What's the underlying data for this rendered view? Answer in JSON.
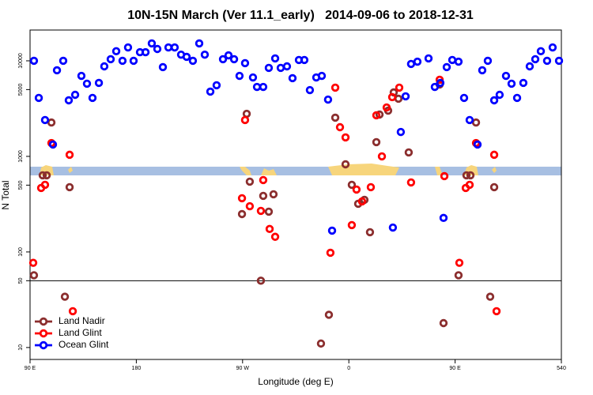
{
  "chart_data": {
    "type": "scatter",
    "title": "10N-15N March (Ver 11.1_early)   2014-09-06 to 2018-12-31",
    "x_label": "Longitude (deg E)",
    "y_label": "N Total",
    "xlim": [
      90,
      540
    ],
    "xticks": [
      {
        "value": 90,
        "label": "90 E"
      },
      180,
      {
        "value": 270,
        "label": "90 W"
      },
      {
        "value": 360,
        "label": "0"
      },
      {
        "value": 450,
        "label": "90 E"
      },
      540
    ],
    "ylim": [
      7.5,
      21000
    ],
    "ylog": true,
    "yticks": [
      10,
      50,
      100,
      500,
      1000,
      5000,
      10000
    ],
    "hline": 50,
    "legend": "bottomleft",
    "series": [
      {
        "name": "Land Nadir",
        "color": "#8b2e2e",
        "x": [
          93.3,
          100.7,
          104.1,
          108.1,
          119.5,
          123.5,
          269.5,
          273.5,
          276.1,
          285.5,
          287.5,
          292.2,
          296.2,
          336.4,
          343.1,
          348.5,
          357.2,
          362.5,
          367.9,
          373.2,
          377.9,
          383.3,
          386.0,
          393.3,
          398.0,
          402.0,
          410.7,
          436.9,
          440.2,
          452.9,
          459.6,
          463.0,
          467.7,
          479.7,
          483.1
        ],
        "values": [
          57,
          634,
          634,
          2260,
          34,
          476,
          249,
          2790,
          544,
          50,
          386,
          264,
          401,
          11,
          22,
          2540,
          826,
          504,
          319,
          351,
          161,
          1410,
          2740,
          3010,
          4670,
          4010,
          1100,
          5650,
          18,
          57,
          634,
          634,
          2260,
          34,
          476
        ]
      },
      {
        "name": "Land Glint",
        "color": "#ff0000",
        "x": [
          92.7,
          99.4,
          102.7,
          108.1,
          123.5,
          126.2,
          272.1,
          269.5,
          276.1,
          285.5,
          287.5,
          292.9,
          297.6,
          344.4,
          348.5,
          352.5,
          357.2,
          362.5,
          366.5,
          371.2,
          378.6,
          383.3,
          388.0,
          392.0,
          396.7,
          402.7,
          412.7,
          436.9,
          440.9,
          453.6,
          459.0,
          462.3,
          467.7,
          483.1,
          485.1
        ],
        "values": [
          77,
          467,
          504,
          1380,
          1040,
          24,
          2400,
          365,
          301,
          269,
          565,
          174,
          144,
          98,
          5240,
          2020,
          1580,
          191,
          450,
          338,
          476,
          2690,
          1000,
          3250,
          4170,
          5240,
          534,
          6340,
          621,
          77,
          467,
          504,
          1380,
          1040,
          24
        ]
      },
      {
        "name": "Ocean Glint",
        "color": "#0000ff",
        "x": [
          93.3,
          97.4,
          102.7,
          109.4,
          112.8,
          118.1,
          122.8,
          128.2,
          133.5,
          138.2,
          142.9,
          148.3,
          152.9,
          158.3,
          163.0,
          168.3,
          173.0,
          177.7,
          183.1,
          187.8,
          193.1,
          197.8,
          202.5,
          207.2,
          212.5,
          217.9,
          222.6,
          227.9,
          233.3,
          238.0,
          242.7,
          248.0,
          253.4,
          258.1,
          262.8,
          267.4,
          272.1,
          278.8,
          282.2,
          287.5,
          292.2,
          297.6,
          302.3,
          307.6,
          312.3,
          317.7,
          322.3,
          327.0,
          332.4,
          337.1,
          342.4,
          345.8,
          397.3,
          404.0,
          408.1,
          412.7,
          418.1,
          427.5,
          432.8,
          437.5,
          440.2,
          442.9,
          447.6,
          452.9,
          457.6,
          462.3,
          469.0,
          473.0,
          477.7,
          483.1,
          487.7,
          493.1,
          497.8,
          502.5,
          507.8,
          513.2,
          517.9,
          522.6,
          527.9,
          532.6,
          538.0
        ],
        "values": [
          10000,
          4090,
          2400,
          1330,
          7960,
          10000,
          3860,
          4410,
          6960,
          5760,
          4090,
          5870,
          8750,
          10400,
          12600,
          10000,
          13800,
          10000,
          12300,
          12300,
          15200,
          13300,
          8590,
          13800,
          13800,
          11600,
          11000,
          10000,
          15200,
          11600,
          4760,
          5550,
          10400,
          11400,
          10400,
          6960,
          9450,
          6700,
          5330,
          5330,
          8430,
          10600,
          8430,
          8750,
          6580,
          10200,
          10200,
          4940,
          6700,
          6960,
          3930,
          167,
          180,
          1800,
          4250,
          9270,
          9800,
          10600,
          5330,
          5870,
          227,
          8590,
          10200,
          9800,
          4090,
          2400,
          1330,
          7960,
          10000,
          3860,
          4410,
          6960,
          5760,
          4090,
          5870,
          8750,
          10400,
          12600,
          10000,
          13800,
          10000
        ]
      }
    ]
  }
}
